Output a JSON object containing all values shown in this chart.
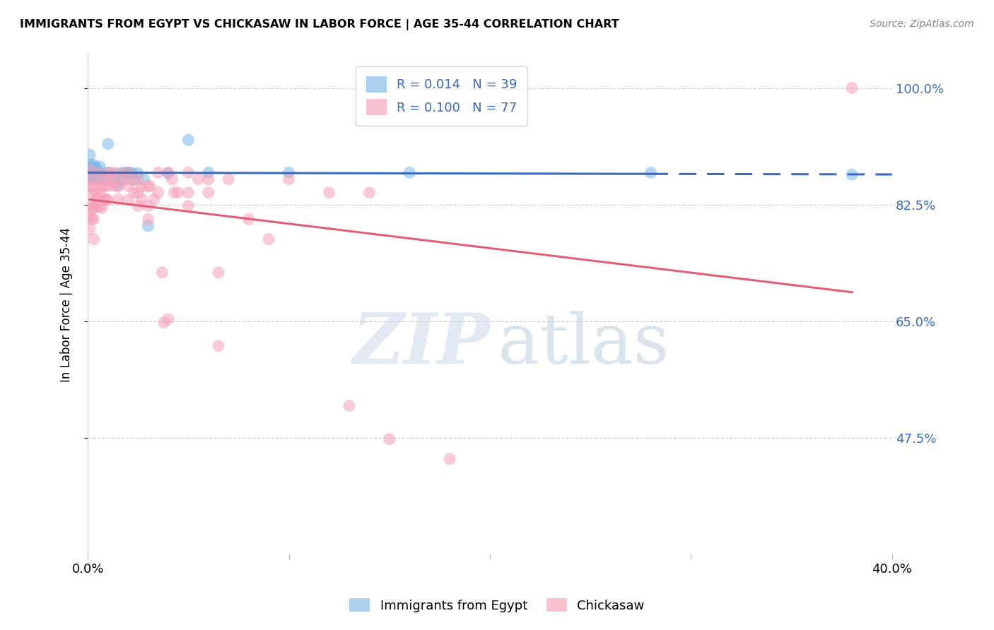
{
  "title": "IMMIGRANTS FROM EGYPT VS CHICKASAW IN LABOR FORCE | AGE 35-44 CORRELATION CHART",
  "source": "Source: ZipAtlas.com",
  "ylabel": "In Labor Force | Age 35-44",
  "xlim": [
    0.0,
    0.4
  ],
  "ylim": [
    0.3,
    1.05
  ],
  "yticks": [
    0.475,
    0.65,
    0.825,
    1.0
  ],
  "ytick_labels": [
    "47.5%",
    "65.0%",
    "82.5%",
    "100.0%"
  ],
  "xticks": [
    0.0,
    0.1,
    0.2,
    0.3,
    0.4
  ],
  "xtick_labels": [
    "0.0%",
    "",
    "",
    "",
    "40.0%"
  ],
  "blue_color": "#7db8e8",
  "pink_color": "#f5a0b8",
  "blue_line_color": "#3a6abf",
  "pink_line_color": "#e0607a",
  "grid_color": "#d0d0d0",
  "background_color": "#ffffff",
  "blue_scatter": [
    [
      0.001,
      0.885
    ],
    [
      0.001,
      0.878
    ],
    [
      0.001,
      0.9
    ],
    [
      0.001,
      0.87
    ],
    [
      0.002,
      0.882
    ],
    [
      0.002,
      0.876
    ],
    [
      0.002,
      0.868
    ],
    [
      0.003,
      0.875
    ],
    [
      0.003,
      0.885
    ],
    [
      0.003,
      0.864
    ],
    [
      0.004,
      0.872
    ],
    [
      0.004,
      0.881
    ],
    [
      0.005,
      0.863
    ],
    [
      0.005,
      0.873
    ],
    [
      0.006,
      0.882
    ],
    [
      0.007,
      0.872
    ],
    [
      0.008,
      0.863
    ],
    [
      0.01,
      0.873
    ],
    [
      0.01,
      0.916
    ],
    [
      0.013,
      0.862
    ],
    [
      0.014,
      0.872
    ],
    [
      0.015,
      0.854
    ],
    [
      0.017,
      0.862
    ],
    [
      0.018,
      0.873
    ],
    [
      0.019,
      0.872
    ],
    [
      0.02,
      0.872
    ],
    [
      0.021,
      0.873
    ],
    [
      0.022,
      0.872
    ],
    [
      0.023,
      0.862
    ],
    [
      0.025,
      0.872
    ],
    [
      0.028,
      0.863
    ],
    [
      0.03,
      0.793
    ],
    [
      0.04,
      0.872
    ],
    [
      0.05,
      0.922
    ],
    [
      0.06,
      0.873
    ],
    [
      0.1,
      0.873
    ],
    [
      0.16,
      0.873
    ],
    [
      0.28,
      0.873
    ],
    [
      0.38,
      0.87
    ]
  ],
  "pink_scatter": [
    [
      0.001,
      0.877
    ],
    [
      0.001,
      0.852
    ],
    [
      0.001,
      0.825
    ],
    [
      0.001,
      0.808
    ],
    [
      0.001,
      0.788
    ],
    [
      0.002,
      0.862
    ],
    [
      0.002,
      0.842
    ],
    [
      0.002,
      0.818
    ],
    [
      0.002,
      0.803
    ],
    [
      0.003,
      0.852
    ],
    [
      0.003,
      0.822
    ],
    [
      0.003,
      0.803
    ],
    [
      0.003,
      0.773
    ],
    [
      0.004,
      0.842
    ],
    [
      0.004,
      0.822
    ],
    [
      0.005,
      0.872
    ],
    [
      0.005,
      0.835
    ],
    [
      0.006,
      0.842
    ],
    [
      0.006,
      0.822
    ],
    [
      0.007,
      0.853
    ],
    [
      0.007,
      0.863
    ],
    [
      0.007,
      0.82
    ],
    [
      0.008,
      0.852
    ],
    [
      0.008,
      0.832
    ],
    [
      0.009,
      0.833
    ],
    [
      0.01,
      0.872
    ],
    [
      0.01,
      0.853
    ],
    [
      0.01,
      0.832
    ],
    [
      0.011,
      0.862
    ],
    [
      0.012,
      0.873
    ],
    [
      0.013,
      0.862
    ],
    [
      0.013,
      0.853
    ],
    [
      0.015,
      0.852
    ],
    [
      0.015,
      0.833
    ],
    [
      0.016,
      0.872
    ],
    [
      0.018,
      0.862
    ],
    [
      0.02,
      0.873
    ],
    [
      0.02,
      0.853
    ],
    [
      0.02,
      0.832
    ],
    [
      0.022,
      0.862
    ],
    [
      0.023,
      0.843
    ],
    [
      0.025,
      0.862
    ],
    [
      0.025,
      0.843
    ],
    [
      0.025,
      0.823
    ],
    [
      0.027,
      0.852
    ],
    [
      0.027,
      0.833
    ],
    [
      0.03,
      0.852
    ],
    [
      0.03,
      0.823
    ],
    [
      0.03,
      0.803
    ],
    [
      0.031,
      0.853
    ],
    [
      0.033,
      0.833
    ],
    [
      0.035,
      0.873
    ],
    [
      0.035,
      0.843
    ],
    [
      0.037,
      0.723
    ],
    [
      0.038,
      0.648
    ],
    [
      0.04,
      0.873
    ],
    [
      0.04,
      0.653
    ],
    [
      0.042,
      0.863
    ],
    [
      0.043,
      0.843
    ],
    [
      0.045,
      0.843
    ],
    [
      0.05,
      0.873
    ],
    [
      0.05,
      0.843
    ],
    [
      0.05,
      0.823
    ],
    [
      0.055,
      0.863
    ],
    [
      0.06,
      0.863
    ],
    [
      0.06,
      0.843
    ],
    [
      0.065,
      0.723
    ],
    [
      0.065,
      0.613
    ],
    [
      0.07,
      0.863
    ],
    [
      0.08,
      0.803
    ],
    [
      0.09,
      0.773
    ],
    [
      0.1,
      0.863
    ],
    [
      0.12,
      0.843
    ],
    [
      0.13,
      0.523
    ],
    [
      0.14,
      0.843
    ],
    [
      0.15,
      0.473
    ],
    [
      0.18,
      0.443
    ],
    [
      0.38,
      1.0
    ]
  ],
  "blue_solid_xend": 0.28,
  "pink_line_xstart": 0.001,
  "pink_line_xend": 0.38
}
